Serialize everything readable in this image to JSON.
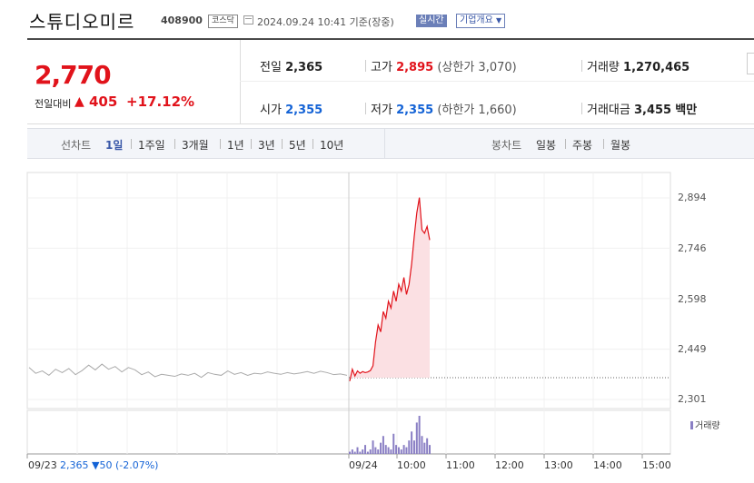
{
  "header": {
    "title": "스튜디오미르",
    "code": "408900",
    "market": "코스닥",
    "date": "2024.09.24 10:41 기준(장중)",
    "live": "실시간",
    "company_info": "기업개요"
  },
  "quote": {
    "price": "2,770",
    "change_label": "전일대비",
    "change_arrow": "▲",
    "change": "405",
    "change_pct": "+17.12%"
  },
  "stats": {
    "prev_close_label": "전일",
    "prev_close": "2,365",
    "high_label": "고가",
    "high": "2,895",
    "upper_limit_label": "(상한가",
    "upper_limit": "3,070)",
    "volume_label": "거래량",
    "volume": "1,270,465",
    "open_label": "시가",
    "open": "2,355",
    "low_label": "저가",
    "low": "2,355",
    "lower_limit_label": "(하한가",
    "lower_limit": "1,660)",
    "amount_label": "거래대금",
    "amount": "3,455",
    "amount_unit": "백만"
  },
  "toolbar": {
    "line_label": "선차트",
    "line_items": [
      "1일",
      "1주일",
      "3개월",
      "1년",
      "3년",
      "5년",
      "10년"
    ],
    "selected_line": "1일",
    "candle_label": "봉차트",
    "candle_items": [
      "일봉",
      "주봉",
      "월봉"
    ]
  },
  "chart_data": {
    "type": "line",
    "yticks": [
      "2,894",
      "2,746",
      "2,598",
      "2,449",
      "2,301"
    ],
    "ylim": [
      2301,
      2894
    ],
    "prev_close_line": 2365,
    "x_labels": [
      "09/23",
      "09/24",
      "10:00",
      "11:00",
      "12:00",
      "13:00",
      "14:00",
      "15:00"
    ],
    "prev_day_label": "09/23",
    "prev_day_close": "2,365",
    "prev_day_change": "▼50 (-2.07%)",
    "volume_legend": "거래량",
    "series": [
      {
        "values_prev_day": [
          2395,
          2378,
          2385,
          2372,
          2390,
          2380,
          2392,
          2374,
          2386,
          2402,
          2388,
          2405,
          2390,
          2398,
          2382,
          2395,
          2388,
          2374,
          2382,
          2368,
          2375,
          2372,
          2369,
          2376,
          2372,
          2378,
          2366,
          2380,
          2375,
          2372,
          2385,
          2375,
          2380,
          2372,
          2378,
          2376,
          2382,
          2378,
          2375,
          2380,
          2376,
          2379,
          2383,
          2378,
          2384,
          2380,
          2374,
          2376,
          2372
        ],
        "values_today": [
          2355,
          2390,
          2370,
          2385,
          2378,
          2383,
          2380,
          2382,
          2386,
          2400,
          2470,
          2520,
          2500,
          2560,
          2540,
          2590,
          2570,
          2620,
          2590,
          2640,
          2620,
          2660,
          2610,
          2640,
          2700,
          2780,
          2850,
          2895,
          2800,
          2790,
          2810,
          2770
        ]
      }
    ],
    "volume_today": [
      1,
      2,
      1,
      3,
      1,
      2,
      4,
      1,
      2,
      6,
      3,
      2,
      5,
      8,
      4,
      3,
      2,
      9,
      4,
      3,
      2,
      4,
      3,
      6,
      10,
      6,
      14,
      17,
      8,
      5,
      7,
      4
    ]
  }
}
